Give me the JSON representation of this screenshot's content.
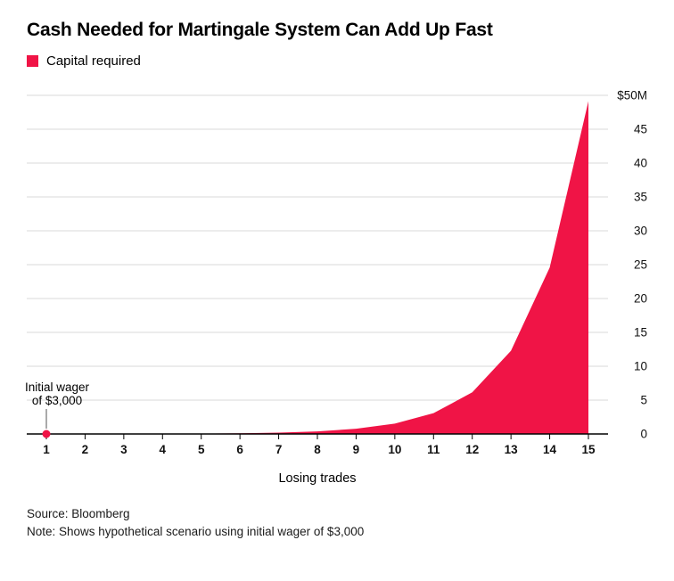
{
  "header": {
    "title": "Cash Needed for Martingale System Can Add Up Fast",
    "legend_label": "Capital required"
  },
  "colors": {
    "accent": "#f01446",
    "grid": "#d9d9d9",
    "axis": "#000000",
    "annotation_line": "#555555"
  },
  "chart_data": {
    "type": "area",
    "title": "Cash Needed for Martingale System Can Add Up Fast",
    "series_name": "Capital required",
    "x": [
      1,
      2,
      3,
      4,
      5,
      6,
      7,
      8,
      9,
      10,
      11,
      12,
      13,
      14,
      15
    ],
    "values": [
      3000,
      6000,
      12000,
      24000,
      48000,
      96000,
      192000,
      384000,
      768000,
      1536000,
      3072000,
      6144000,
      12288000,
      24576000,
      49152000
    ],
    "xlabel": "Losing trades",
    "ylabel": "",
    "ylim": [
      0,
      50000000
    ],
    "grid": true,
    "legend_position": "top-left",
    "y_axis_side": "right",
    "y_tick_labels_top_to_bottom": [
      "$50M",
      "45",
      "40",
      "35",
      "30",
      "25",
      "20",
      "15",
      "10",
      "5",
      "0"
    ],
    "x_tick_labels": [
      "1",
      "2",
      "3",
      "4",
      "5",
      "6",
      "7",
      "8",
      "9",
      "10",
      "11",
      "12",
      "13",
      "14",
      "15"
    ],
    "annotation": {
      "lines": [
        "Initial wager",
        "of $3,000"
      ],
      "x": 1,
      "y": 0
    }
  },
  "footer": {
    "source": "Source: Bloomberg",
    "note": "Note: Shows hypothetical scenario using initial wager of $3,000"
  }
}
